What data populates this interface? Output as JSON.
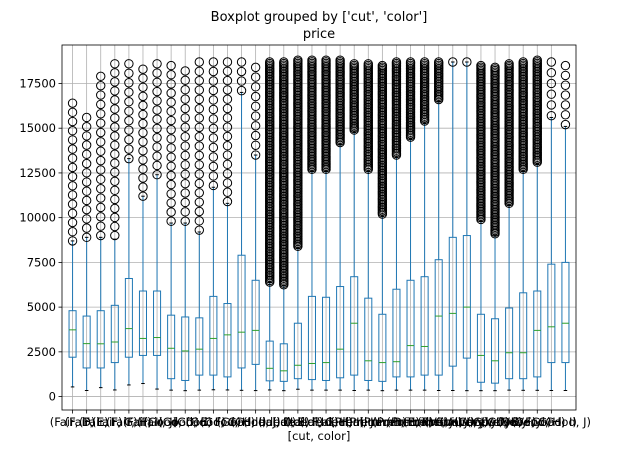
{
  "chart_data": {
    "type": "box",
    "title": "Boxplot grouped by ['cut', 'color']",
    "subtitle": "price",
    "xlabel": "[cut, color]",
    "ylabel": "",
    "ylim": [
      -750,
      19650
    ],
    "yticks": [
      0,
      2500,
      5000,
      7500,
      10000,
      12500,
      15000,
      17500
    ],
    "ytick_labels": [
      "0",
      "2500",
      "5000",
      "7500",
      "10000",
      "12500",
      "15000",
      "17500"
    ],
    "grid": true,
    "colors": {
      "box": "#1f77b4",
      "median": "#2ca02c",
      "grid": "#b0b0b0",
      "flier": "#000000"
    },
    "xtick_labels": [
      "(Fair, D)",
      "(Fair, E)",
      "(Fair, F)",
      "(Fair, G)",
      "(Fair, H)",
      "(Fair, I)",
      "(Fair, J)",
      "(Good, D)",
      "(Good, E)",
      "(Good, F)",
      "(Good, G)",
      "(Good, H)",
      "(Good, I)",
      "(Good, J)",
      "(Ideal, D)",
      "(Ideal, E)",
      "(Ideal, F)",
      "(Ideal, G)",
      "(Ideal, H)",
      "(Ideal, I)",
      "(Ideal, J)",
      "(Premium, D)",
      "(Premium, E)",
      "(Premium, F)",
      "(Premium, G)",
      "(Premium, H)",
      "(Premium, I)",
      "(Premium, J)",
      "(Very Good, D)",
      "(Very Good, E)",
      "(Very Good, F)",
      "(Very Good, G)",
      "(Very Good, H)",
      "(Very Good, I)",
      "(Very Good, J)"
    ],
    "boxes": [
      {
        "whislo": 540,
        "q1": 2200,
        "med": 3730,
        "q3": 4800,
        "whishi": 8700,
        "fliers_lo": 8700,
        "fliers_hi": 16400,
        "dense": false
      },
      {
        "whislo": 340,
        "q1": 1600,
        "med": 2960,
        "q3": 4500,
        "whishi": 8900,
        "fliers_lo": 8900,
        "fliers_hi": 15600,
        "dense": false
      },
      {
        "whislo": 500,
        "q1": 1600,
        "med": 2950,
        "q3": 4800,
        "whishi": 8900,
        "fliers_lo": 9000,
        "fliers_hi": 17900,
        "dense": false
      },
      {
        "whislo": 370,
        "q1": 1900,
        "med": 3050,
        "q3": 5100,
        "whishi": 8800,
        "fliers_lo": 9000,
        "fliers_hi": 18600,
        "dense": false
      },
      {
        "whislo": 650,
        "q1": 2200,
        "med": 3800,
        "q3": 6600,
        "whishi": 13300,
        "fliers_lo": 13300,
        "fliers_hi": 18600,
        "dense": false
      },
      {
        "whislo": 730,
        "q1": 2300,
        "med": 3250,
        "q3": 5900,
        "whishi": 11200,
        "fliers_lo": 11200,
        "fliers_hi": 18300,
        "dense": false
      },
      {
        "whislo": 420,
        "q1": 2300,
        "med": 3300,
        "q3": 5900,
        "whishi": 12400,
        "fliers_lo": 12400,
        "fliers_hi": 18600,
        "dense": false
      },
      {
        "whislo": 360,
        "q1": 1000,
        "med": 2700,
        "q3": 4550,
        "whishi": 9700,
        "fliers_lo": 9800,
        "fliers_hi": 18500,
        "dense": false
      },
      {
        "whislo": 330,
        "q1": 900,
        "med": 2550,
        "q3": 4450,
        "whishi": 9700,
        "fliers_lo": 9800,
        "fliers_hi": 18200,
        "dense": false
      },
      {
        "whislo": 360,
        "q1": 1200,
        "med": 2650,
        "q3": 4400,
        "whishi": 9200,
        "fliers_lo": 9300,
        "fliers_hi": 18700,
        "dense": false
      },
      {
        "whislo": 380,
        "q1": 1200,
        "med": 3250,
        "q3": 5600,
        "whishi": 11700,
        "fliers_lo": 11800,
        "fliers_hi": 18700,
        "dense": false
      },
      {
        "whislo": 370,
        "q1": 1100,
        "med": 3450,
        "q3": 5200,
        "whishi": 10800,
        "fliers_lo": 10900,
        "fliers_hi": 18700,
        "dense": false
      },
      {
        "whislo": 350,
        "q1": 1600,
        "med": 3600,
        "q3": 7900,
        "whishi": 17000,
        "fliers_lo": 17100,
        "fliers_hi": 18700,
        "dense": false
      },
      {
        "whislo": 335,
        "q1": 1800,
        "med": 3700,
        "q3": 6500,
        "whishi": 13500,
        "fliers_lo": 13500,
        "fliers_hi": 18400,
        "dense": false
      },
      {
        "whislo": 370,
        "q1": 880,
        "med": 1580,
        "q3": 3100,
        "whishi": 6400,
        "fliers_lo": 6400,
        "fliers_hi": 18700,
        "dense": true
      },
      {
        "whislo": 330,
        "q1": 850,
        "med": 1440,
        "q3": 2950,
        "whishi": 6200,
        "fliers_lo": 6250,
        "fliers_hi": 18700,
        "dense": true
      },
      {
        "whislo": 410,
        "q1": 1000,
        "med": 1750,
        "q3": 4100,
        "whishi": 8300,
        "fliers_lo": 8400,
        "fliers_hi": 18800,
        "dense": true
      },
      {
        "whislo": 360,
        "q1": 950,
        "med": 1850,
        "q3": 5600,
        "whishi": 12600,
        "fliers_lo": 12700,
        "fliers_hi": 18800,
        "dense": true
      },
      {
        "whislo": 360,
        "q1": 900,
        "med": 1900,
        "q3": 5550,
        "whishi": 12600,
        "fliers_lo": 12700,
        "fliers_hi": 18800,
        "dense": true
      },
      {
        "whislo": 360,
        "q1": 1050,
        "med": 2650,
        "q3": 6150,
        "whishi": 14100,
        "fliers_lo": 14200,
        "fliers_hi": 18800,
        "dense": true
      },
      {
        "whislo": 340,
        "q1": 1200,
        "med": 4100,
        "q3": 6700,
        "whishi": 14800,
        "fliers_lo": 14900,
        "fliers_hi": 18600,
        "dense": true
      },
      {
        "whislo": 360,
        "q1": 900,
        "med": 2000,
        "q3": 5500,
        "whishi": 12600,
        "fliers_lo": 12700,
        "fliers_hi": 18600,
        "dense": true
      },
      {
        "whislo": 330,
        "q1": 850,
        "med": 1900,
        "q3": 4600,
        "whishi": 10100,
        "fliers_lo": 10200,
        "fliers_hi": 18500,
        "dense": true
      },
      {
        "whislo": 360,
        "q1": 1100,
        "med": 1950,
        "q3": 6000,
        "whishi": 13400,
        "fliers_lo": 13500,
        "fliers_hi": 18700,
        "dense": true
      },
      {
        "whislo": 360,
        "q1": 1100,
        "med": 2850,
        "q3": 6500,
        "whishi": 14400,
        "fliers_lo": 14500,
        "fliers_hi": 18700,
        "dense": true
      },
      {
        "whislo": 360,
        "q1": 1200,
        "med": 2800,
        "q3": 6700,
        "whishi": 15300,
        "fliers_lo": 15400,
        "fliers_hi": 18700,
        "dense": true
      },
      {
        "whislo": 340,
        "q1": 1200,
        "med": 4500,
        "q3": 7650,
        "whishi": 16500,
        "fliers_lo": 16600,
        "fliers_hi": 18700,
        "dense": true
      },
      {
        "whislo": 340,
        "q1": 1700,
        "med": 4650,
        "q3": 8900,
        "whishi": 18700,
        "fliers_lo": 18700,
        "fliers_hi": 18700,
        "dense": false
      },
      {
        "whislo": 330,
        "q1": 2150,
        "med": 5000,
        "q3": 9000,
        "whishi": 18700,
        "fliers_lo": 18700,
        "fliers_hi": 18700,
        "dense": false
      },
      {
        "whislo": 330,
        "q1": 800,
        "med": 2300,
        "q3": 4600,
        "whishi": 9800,
        "fliers_lo": 9900,
        "fliers_hi": 18500,
        "dense": true
      },
      {
        "whislo": 330,
        "q1": 750,
        "med": 2000,
        "q3": 4350,
        "whishi": 9000,
        "fliers_lo": 9100,
        "fliers_hi": 18400,
        "dense": true
      },
      {
        "whislo": 360,
        "q1": 1000,
        "med": 2450,
        "q3": 4950,
        "whishi": 10700,
        "fliers_lo": 10800,
        "fliers_hi": 18600,
        "dense": true
      },
      {
        "whislo": 350,
        "q1": 1000,
        "med": 2450,
        "q3": 5800,
        "whishi": 12600,
        "fliers_lo": 12700,
        "fliers_hi": 18700,
        "dense": true
      },
      {
        "whislo": 350,
        "q1": 1100,
        "med": 3700,
        "q3": 5900,
        "whishi": 13000,
        "fliers_lo": 13100,
        "fliers_hi": 18800,
        "dense": true
      },
      {
        "whislo": 340,
        "q1": 1900,
        "med": 3900,
        "q3": 7400,
        "whishi": 15600,
        "fliers_lo": 15700,
        "fliers_hi": 18700,
        "dense": false
      },
      {
        "whislo": 340,
        "q1": 1900,
        "med": 4100,
        "q3": 7500,
        "whishi": 15100,
        "fliers_lo": 15200,
        "fliers_hi": 18500,
        "dense": false
      }
    ]
  }
}
